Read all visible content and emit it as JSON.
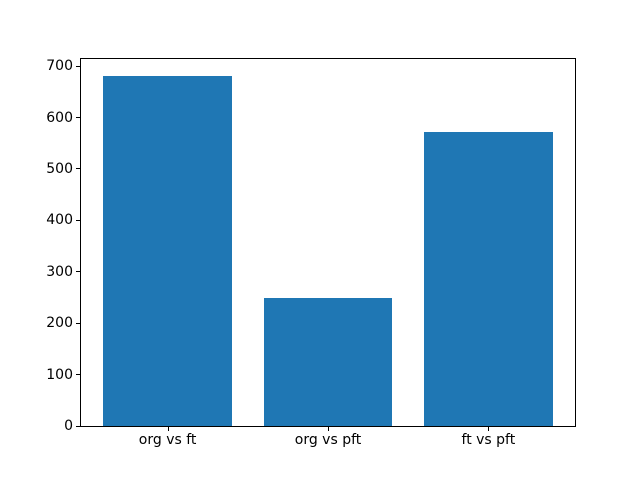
{
  "figure": {
    "background": "#ffffff"
  },
  "chart_data": {
    "type": "bar",
    "categories": [
      "org vs ft",
      "org vs pft",
      "ft vs pft"
    ],
    "values": [
      680,
      250,
      572
    ],
    "title": "",
    "xlabel": "",
    "ylabel": "",
    "ylim": [
      0,
      714
    ],
    "yticks": [
      0,
      100,
      200,
      300,
      400,
      500,
      600,
      700
    ],
    "ytick_labels": [
      "0",
      "100",
      "200",
      "300",
      "400",
      "500",
      "600",
      "700"
    ],
    "bar_color": "#1f77b4",
    "bar_width_fraction": 0.8,
    "grid": false,
    "legend": "none",
    "spine_color": "#000000",
    "tick_label_color": "#000000"
  }
}
